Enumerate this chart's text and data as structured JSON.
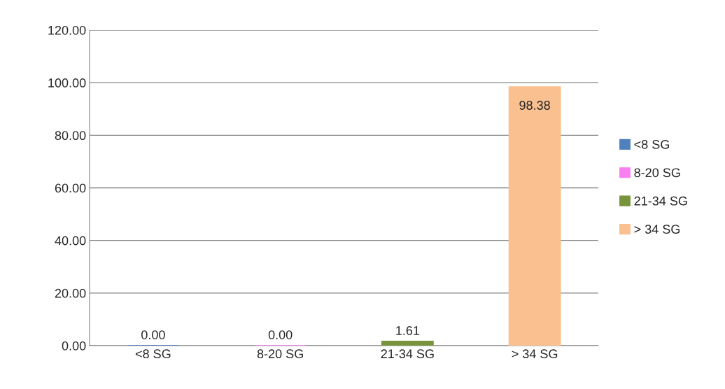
{
  "chart_data": {
    "type": "bar",
    "categories": [
      "<8 SG",
      "8-20 SG",
      "21-34 SG",
      "> 34 SG"
    ],
    "series": [
      {
        "name": "<8 SG",
        "color": "#4f81bd",
        "values": [
          0.0,
          null,
          null,
          null
        ],
        "value_labels": [
          "0.00",
          null,
          null,
          null
        ]
      },
      {
        "name": "8-20 SG",
        "color": "#f77ff0",
        "values": [
          null,
          0.0,
          null,
          null
        ],
        "value_labels": [
          null,
          "0.00",
          null,
          null
        ]
      },
      {
        "name": "21-34 SG",
        "color": "#77933c",
        "values": [
          null,
          null,
          1.61,
          null
        ],
        "value_labels": [
          null,
          null,
          "1.61",
          null
        ]
      },
      {
        "name": "> 34 SG",
        "color": "#fac090",
        "values": [
          null,
          null,
          null,
          98.38
        ],
        "value_labels": [
          null,
          null,
          null,
          "98.38"
        ]
      }
    ],
    "ylim": [
      0,
      120
    ],
    "yticks": [
      {
        "value": 0,
        "label": "0.00"
      },
      {
        "value": 20,
        "label": "20.00"
      },
      {
        "value": 40,
        "label": "40.00"
      },
      {
        "value": 60,
        "label": "60.00"
      },
      {
        "value": 80,
        "label": "80.00"
      },
      {
        "value": 100,
        "label": "100.00"
      },
      {
        "value": 120,
        "label": "120.00"
      }
    ],
    "grid": "y",
    "legend": "right"
  }
}
